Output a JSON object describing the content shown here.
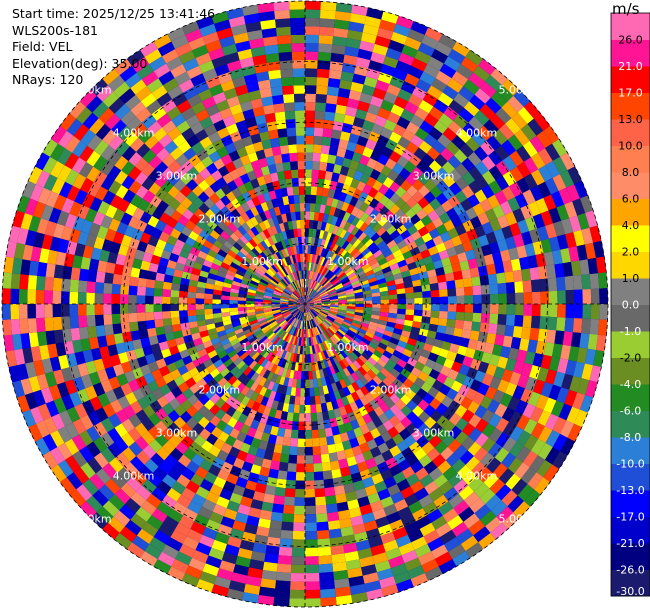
{
  "info": {
    "start_time": "Start time: 2025/12/25 13:41:46",
    "instrument": "WLS200s-181",
    "field": "Field: VEL",
    "elevation": "Elevation(deg): 35.00",
    "nrays": "NRays: 120"
  },
  "chart_data": {
    "type": "heatmap",
    "title": "",
    "colorbar": {
      "unit": "m/s",
      "bounds": [
        -30.0,
        -26.0,
        -21.0,
        -17.0,
        -13.0,
        -10.0,
        -8.0,
        -6.0,
        -4.0,
        -2.0,
        -1.0,
        0.0,
        1.0,
        2.0,
        4.0,
        6.0,
        8.0,
        10.0,
        13.0,
        17.0,
        21.0,
        26.0
      ],
      "tick_labels": [
        "-30.0",
        "-26.0",
        "-21.0",
        "-17.0",
        "-13.0",
        "-10.0",
        "-8.0",
        "-6.0",
        "-4.0",
        "-2.0",
        "-1.0",
        "0.0",
        "1.0",
        "2.0",
        "4.0",
        "6.0",
        "8.0",
        "10.0",
        "13.0",
        "17.0",
        "21.0",
        "26.0"
      ],
      "colors": [
        "#1a1a6e",
        "#000080",
        "#0000cd",
        "#0000ff",
        "#1f4fd6",
        "#2b7fd6",
        "#2e8b57",
        "#228b22",
        "#6b8e23",
        "#9acd32",
        "#696969",
        "#808080",
        "#ffd700",
        "#ffff00",
        "#ffa500",
        "#ff8c69",
        "#ff7f50",
        "#ff6347",
        "#ff4500",
        "#ff0000",
        "#ff1493",
        "#ff69b4"
      ]
    },
    "range_rings": {
      "labels": [
        "1.00km",
        "2.00km",
        "3.00km",
        "4.00km",
        "5.00km"
      ],
      "values_km": [
        1,
        2,
        3,
        4,
        5
      ]
    },
    "max_range_km": 5,
    "n_rays": 120
  }
}
